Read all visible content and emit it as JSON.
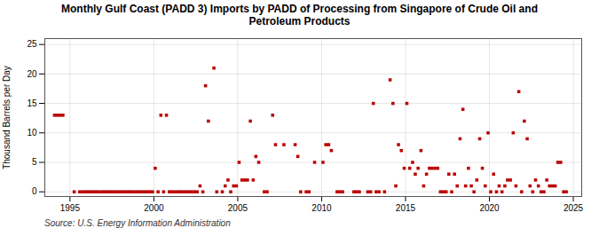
{
  "chart_data": {
    "type": "scatter",
    "title": "Monthly Gulf Coast (PADD 3) Imports by PADD of Processing from Singapore of Crude Oil and\nPetroleum Products",
    "ylabel": "Thousand Barrels per Day",
    "source": "Source: U.S. Energy Information Administration",
    "color": "#bb0000",
    "marker": "square",
    "grid": true,
    "xlim": [
      1993.5,
      2025.5
    ],
    "ylim": [
      -0.8,
      26
    ],
    "xticks": [
      1995,
      2000,
      2005,
      2010,
      2015,
      2020,
      2025
    ],
    "yticks": [
      0,
      5,
      10,
      15,
      20,
      25
    ],
    "x": [
      1994.08,
      1994.25,
      1994.42,
      1994.58,
      1995.25,
      1995.58,
      1995.75,
      1995.92,
      1996.08,
      1996.25,
      1996.42,
      1996.58,
      1996.75,
      1996.92,
      1997.08,
      1997.25,
      1997.42,
      1997.58,
      1997.75,
      1997.92,
      1998.08,
      1998.25,
      1998.42,
      1998.58,
      1998.75,
      1998.92,
      1999.08,
      1999.25,
      1999.42,
      1999.58,
      1999.75,
      1999.92,
      2000.08,
      2000.25,
      2000.42,
      2000.58,
      2000.75,
      2000.92,
      2001.08,
      2001.25,
      2001.42,
      2001.58,
      2001.75,
      2001.92,
      2002.08,
      2002.25,
      2002.42,
      2002.58,
      2002.75,
      2002.92,
      2003.08,
      2003.25,
      2003.58,
      2003.75,
      2004.08,
      2004.25,
      2004.42,
      2004.58,
      2004.75,
      2004.92,
      2005.08,
      2005.25,
      2005.42,
      2005.58,
      2005.75,
      2005.92,
      2006.08,
      2006.25,
      2006.58,
      2006.75,
      2007.08,
      2007.25,
      2007.75,
      2008.42,
      2008.58,
      2008.75,
      2009.08,
      2009.25,
      2009.58,
      2010.08,
      2010.25,
      2010.42,
      2010.58,
      2010.92,
      2011.08,
      2011.25,
      2011.92,
      2012.08,
      2012.25,
      2012.75,
      2012.92,
      2013.08,
      2013.25,
      2013.42,
      2013.75,
      2014.08,
      2014.25,
      2014.42,
      2014.58,
      2014.75,
      2014.92,
      2015.08,
      2015.25,
      2015.42,
      2015.58,
      2015.75,
      2015.92,
      2016.08,
      2016.25,
      2016.42,
      2016.58,
      2016.75,
      2016.92,
      2017.08,
      2017.25,
      2017.42,
      2017.58,
      2017.75,
      2017.92,
      2018.08,
      2018.25,
      2018.42,
      2018.58,
      2018.75,
      2018.92,
      2019.08,
      2019.25,
      2019.42,
      2019.58,
      2019.75,
      2019.92,
      2020.08,
      2020.25,
      2020.42,
      2020.58,
      2020.75,
      2020.92,
      2021.08,
      2021.25,
      2021.42,
      2021.58,
      2021.75,
      2021.92,
      2022.08,
      2022.25,
      2022.42,
      2022.58,
      2022.75,
      2022.92,
      2023.08,
      2023.25,
      2023.42,
      2023.58,
      2023.75,
      2023.92,
      2024.08,
      2024.25,
      2024.42,
      2024.58
    ],
    "values": [
      13,
      13,
      13,
      13,
      0,
      0,
      0,
      0,
      0,
      0,
      0,
      0,
      0,
      0,
      0,
      0,
      0,
      0,
      0,
      0,
      0,
      0,
      0,
      0,
      0,
      0,
      0,
      0,
      0,
      0,
      0,
      0,
      4,
      0,
      13,
      0,
      13,
      0,
      0,
      0,
      0,
      0,
      0,
      0,
      0,
      0,
      0,
      0,
      1,
      0,
      18,
      12,
      21,
      0,
      0,
      1,
      2,
      0,
      1,
      1,
      5,
      2,
      2,
      2,
      12,
      2,
      6,
      5,
      0,
      0,
      13,
      8,
      8,
      8,
      6,
      0,
      0,
      0,
      5,
      5,
      8,
      8,
      7,
      0,
      0,
      0,
      0,
      0,
      0,
      0,
      0,
      15,
      0,
      0,
      0,
      19,
      15,
      1,
      8,
      7,
      4,
      15,
      4,
      5,
      3,
      4,
      7,
      1,
      3,
      4,
      4,
      4,
      4,
      0,
      0,
      0,
      3,
      0,
      3,
      1,
      9,
      14,
      1,
      4,
      1,
      0,
      2,
      9,
      4,
      1,
      10,
      0,
      3,
      0,
      1,
      0,
      1,
      2,
      2,
      10,
      1,
      17,
      0,
      12,
      9,
      1,
      0,
      2,
      1,
      0,
      0,
      2,
      1,
      1,
      1,
      5,
      5,
      0,
      0
    ]
  }
}
